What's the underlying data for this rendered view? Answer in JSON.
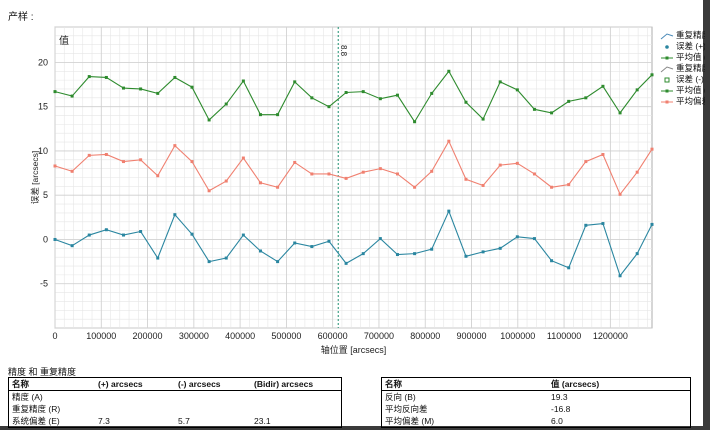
{
  "page": {
    "label": "产样 :"
  },
  "colors": {
    "green": "#2e8b2e",
    "salmon": "#f08070",
    "teal": "#2a86a0",
    "cursor": "#1e9070",
    "grid": "#e6e6e6"
  },
  "chart_data": {
    "type": "line",
    "xlabel": "轴位置 [arcsecs]",
    "ylabel": "误差 [arcsecs]",
    "xlim": [
      0,
      1290000
    ],
    "ylim": [
      -10,
      24
    ],
    "grid": true,
    "x_ticks": [
      0,
      100000,
      200000,
      300000,
      400000,
      500000,
      600000,
      700000,
      800000,
      900000,
      1000000,
      1100000,
      1200000
    ],
    "y_ticks": [
      -5,
      0,
      5,
      10,
      15,
      20
    ],
    "corner_label": "值",
    "cursor": {
      "x": 612000,
      "label": "8.8"
    },
    "x": [
      0,
      37000,
      74000,
      111000,
      148000,
      185000,
      222000,
      259000,
      296000,
      333000,
      370000,
      407000,
      444000,
      481000,
      518000,
      555000,
      592000,
      629000,
      666000,
      703000,
      740000,
      777000,
      814000,
      851000,
      888000,
      925000,
      962000,
      999000,
      1036000,
      1073000,
      1110000,
      1147000,
      1184000,
      1221000,
      1258000,
      1290000
    ],
    "series": [
      {
        "name": "平均值 (+)",
        "color": "#2e8b2e",
        "values": [
          16.7,
          16.2,
          18.4,
          18.3,
          17.1,
          17.0,
          16.5,
          18.3,
          17.2,
          13.5,
          15.3,
          17.9,
          14.1,
          14.1,
          17.8,
          16.0,
          15.0,
          16.6,
          16.7,
          15.9,
          16.3,
          13.3,
          16.5,
          19.0,
          15.5,
          13.6,
          17.8,
          16.9,
          14.7,
          14.3,
          15.6,
          16.0,
          17.3,
          14.3,
          16.9,
          18.6
        ]
      },
      {
        "name": "平均偏差",
        "color": "#f08070",
        "values": [
          8.3,
          7.7,
          9.5,
          9.6,
          8.8,
          9.0,
          7.2,
          10.6,
          8.8,
          5.5,
          6.6,
          9.2,
          6.4,
          5.9,
          8.7,
          7.4,
          7.4,
          6.9,
          7.6,
          8.0,
          7.4,
          5.9,
          7.7,
          11.1,
          6.8,
          6.1,
          8.4,
          8.6,
          7.4,
          5.9,
          6.2,
          8.8,
          9.6,
          5.1,
          7.6,
          10.2
        ]
      },
      {
        "name": "平均值 (-)",
        "color": "#2a86a0",
        "values": [
          0.0,
          -0.7,
          0.5,
          1.1,
          0.5,
          0.9,
          -2.1,
          2.8,
          0.6,
          -2.5,
          -2.1,
          0.5,
          -1.3,
          -2.5,
          -0.4,
          -0.8,
          -0.2,
          -2.7,
          -1.6,
          0.1,
          -1.7,
          -1.6,
          -1.1,
          3.2,
          -1.9,
          -1.4,
          -1.0,
          0.3,
          0.1,
          -2.4,
          -3.2,
          1.6,
          1.8,
          -4.1,
          -1.6,
          1.7
        ]
      }
    ]
  },
  "legend": {
    "items": [
      {
        "label": "重复精度",
        "kind": "line",
        "color": "#4a8ab8"
      },
      {
        "label": "误差 (+)",
        "kind": "dot",
        "color": "#2a86a0"
      },
      {
        "label": "平均值 (+",
        "kind": "line-dot",
        "color": "#2e8b2e"
      },
      {
        "label": "重复精度",
        "kind": "line",
        "color": "#888888"
      },
      {
        "label": "误差 (-)",
        "kind": "square",
        "color": "#2e8b2e"
      },
      {
        "label": "平均值 (-",
        "kind": "line-dot",
        "color": "#2e8b2e"
      },
      {
        "label": "平均偏差",
        "kind": "line-dot",
        "color": "#f08070"
      }
    ]
  },
  "bottom_title": "精度 和 重复精度",
  "table1": {
    "headers": [
      "名称",
      "(+) arcsecs",
      "(-) arcsecs",
      "(Bidir) arcsecs"
    ],
    "rows": [
      [
        "精度 (A)",
        "",
        "",
        ""
      ],
      [
        "重复精度 (R)",
        "",
        "",
        ""
      ],
      [
        "系统偏差 (E)",
        "7.3",
        "5.7",
        "23.1"
      ]
    ]
  },
  "table2": {
    "headers": [
      "名称",
      "值 (arcsecs)"
    ],
    "rows": [
      [
        "反向 (B)",
        "19.3"
      ],
      [
        "平均反向差",
        "-16.8"
      ],
      [
        "平均偏差 (M)",
        "6.0"
      ]
    ]
  }
}
